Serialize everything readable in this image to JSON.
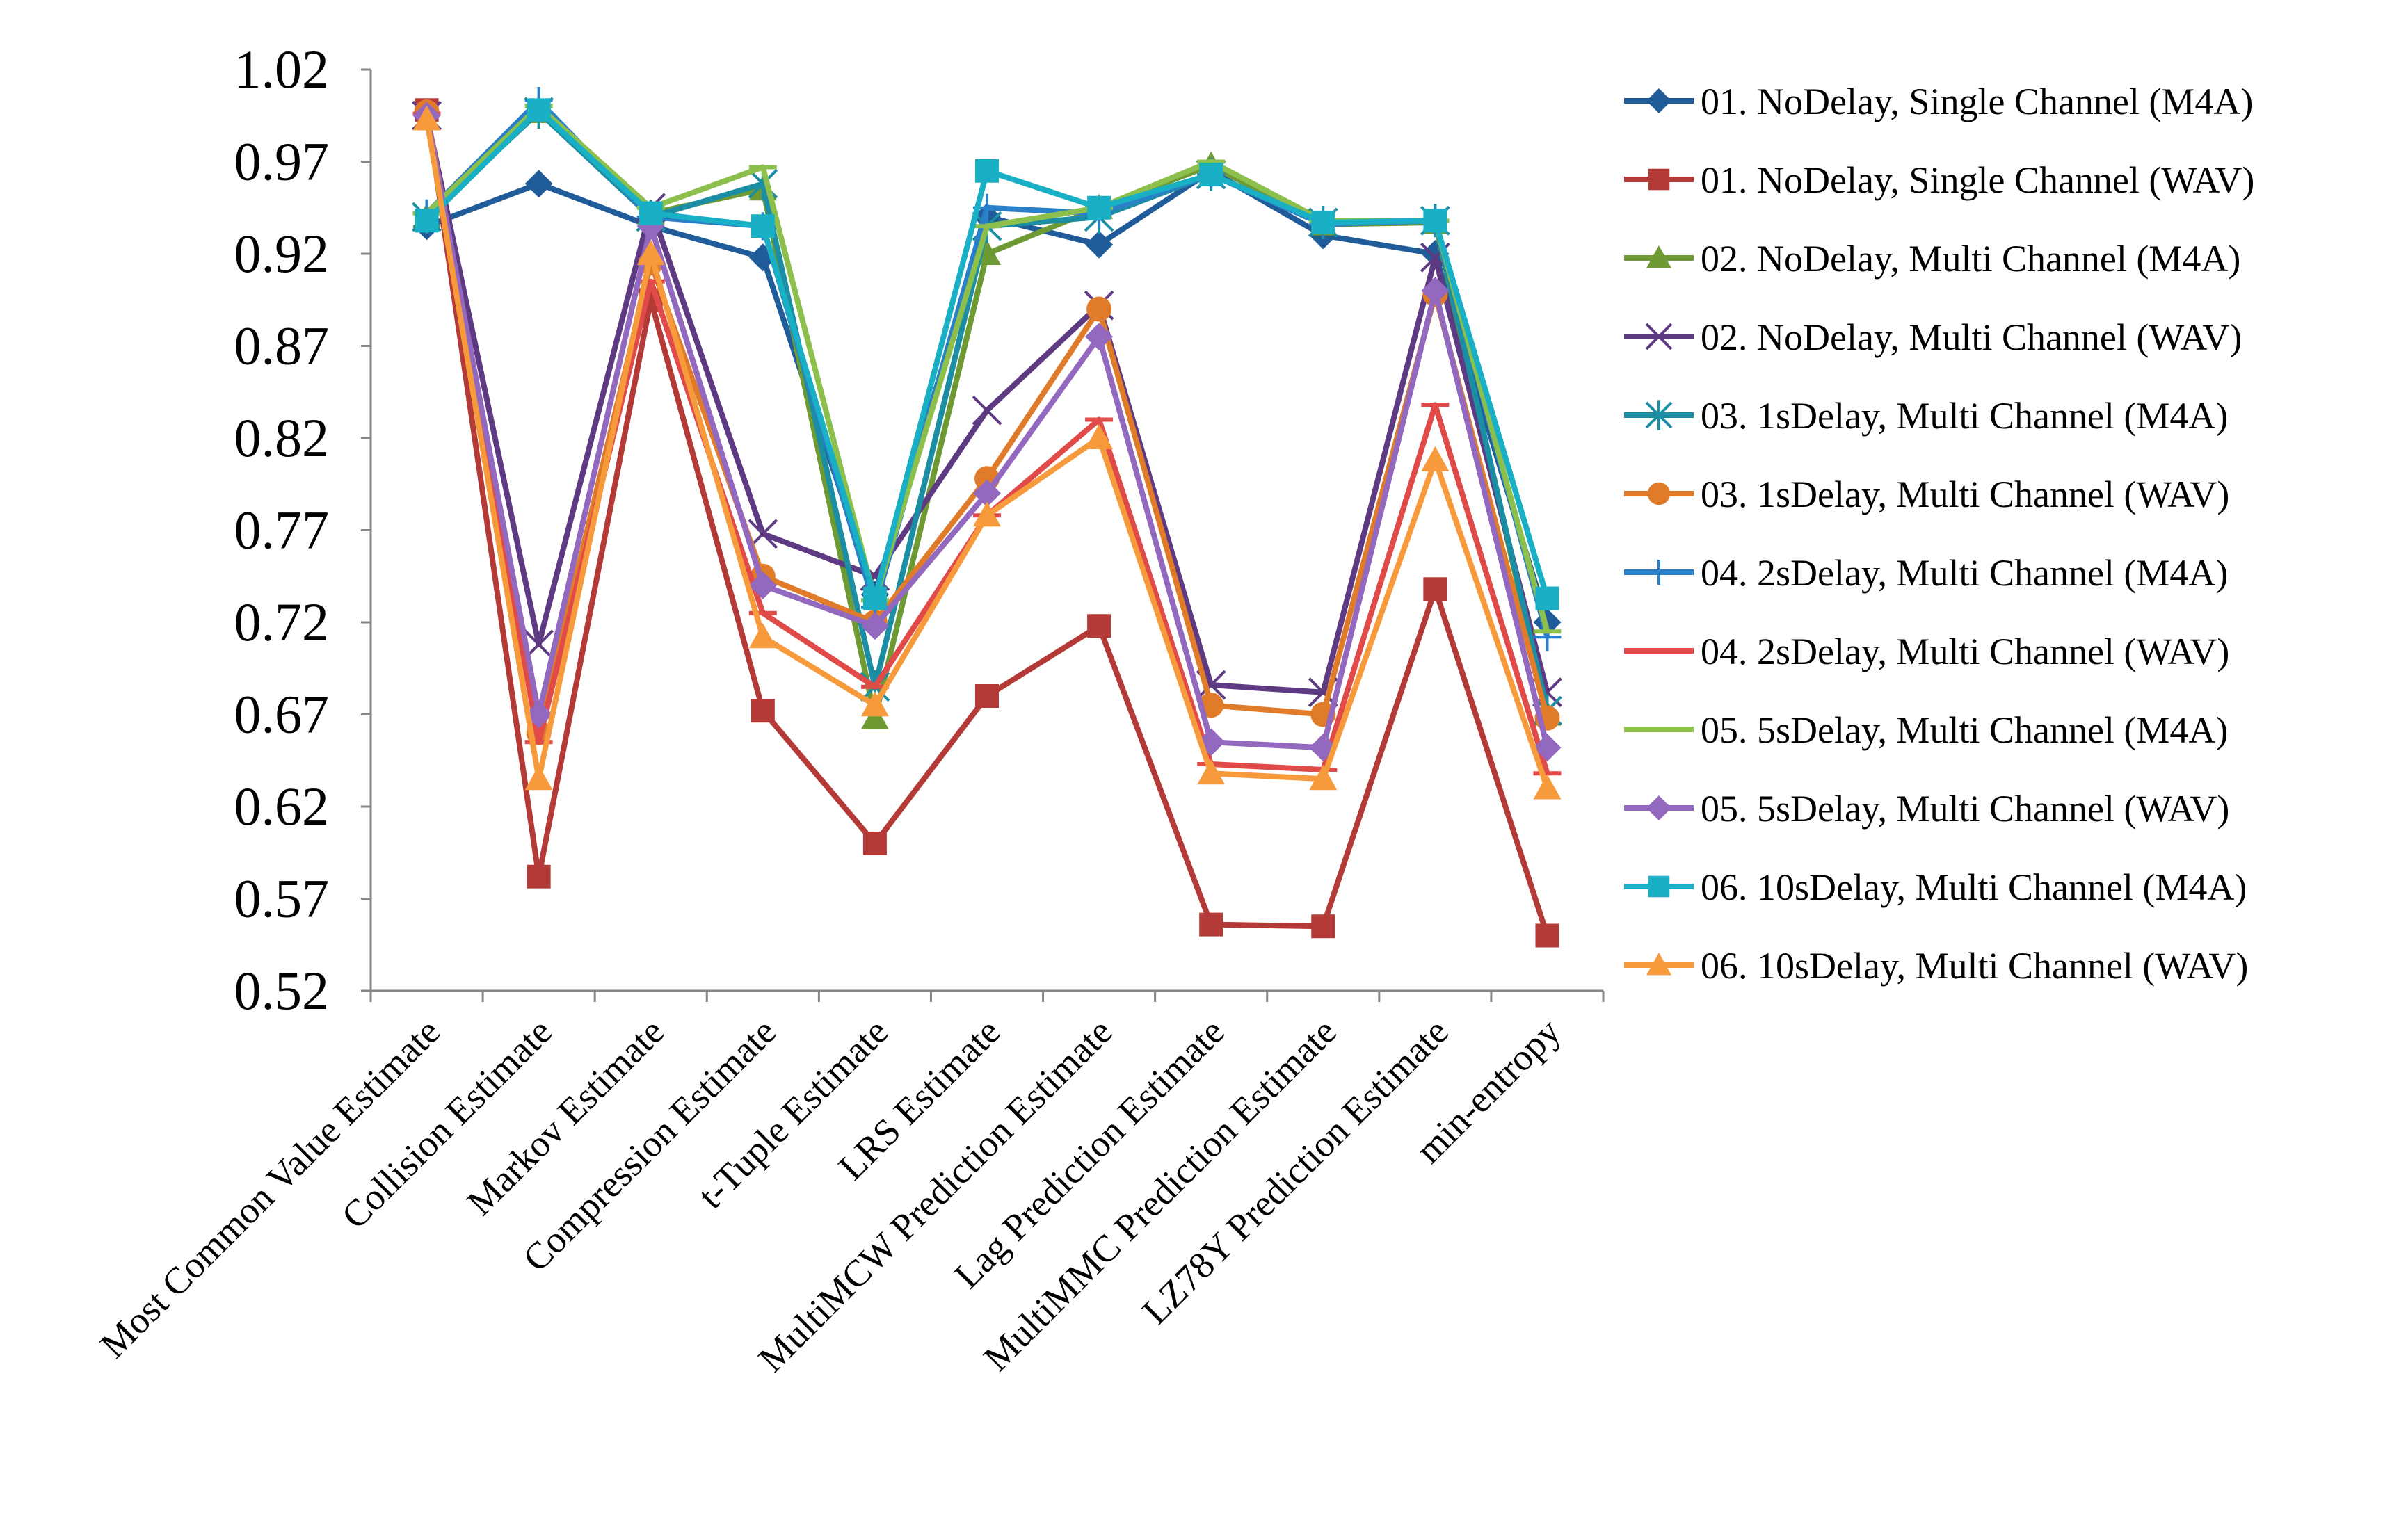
{
  "chart_data": {
    "type": "line",
    "title": "",
    "xlabel": "",
    "ylabel": "",
    "ylim": [
      0.52,
      1.02
    ],
    "yticks": [
      "1.02",
      "0.97",
      "0.92",
      "0.87",
      "0.82",
      "0.77",
      "0.72",
      "0.67",
      "0.62",
      "0.57",
      "0.52"
    ],
    "grid": false,
    "legend_position": "right",
    "categories": [
      "Most Common Value Estimate",
      "Collision Estimate",
      "Markov Estimate",
      "Compression Estimate",
      "t-Tuple Estimate",
      "LRS Estimate",
      "MultiMCW Prediction Estimate",
      "Lag Prediction Estimate",
      "MultiMMC Prediction Estimate",
      "LZ78Y Prediction Estimate",
      "min-entropy"
    ],
    "series": [
      {
        "name": "01. NoDelay, Single Channel (M4A)",
        "color": "#1F5C99",
        "marker": "diamond",
        "values": [
          0.935,
          0.958,
          0.935,
          0.918,
          0.735,
          0.94,
          0.925,
          0.965,
          0.93,
          0.92,
          0.72
        ]
      },
      {
        "name": "01. NoDelay, Single Channel (WAV)",
        "color": "#B33A36",
        "marker": "square",
        "values": [
          0.998,
          0.582,
          0.895,
          0.672,
          0.6,
          0.68,
          0.718,
          0.556,
          0.555,
          0.738,
          0.55
        ]
      },
      {
        "name": "02. NoDelay, Multi Channel (M4A)",
        "color": "#6E9A34",
        "marker": "triangle",
        "values": [
          0.94,
          0.997,
          0.942,
          0.955,
          0.668,
          0.92,
          0.945,
          0.968,
          0.936,
          0.937,
          0.67
        ]
      },
      {
        "name": "02. NoDelay, Multi Channel (WAV)",
        "color": "#5E3A82",
        "marker": "x",
        "values": [
          0.995,
          0.708,
          0.945,
          0.768,
          0.745,
          0.835,
          0.892,
          0.686,
          0.682,
          0.918,
          0.682
        ]
      },
      {
        "name": "03. 1sDelay, Multi Channel (M4A)",
        "color": "#1C8EA3",
        "marker": "star",
        "values": [
          0.94,
          0.997,
          0.94,
          0.958,
          0.685,
          0.935,
          0.94,
          0.963,
          0.937,
          0.938,
          0.672
        ]
      },
      {
        "name": "03. 1sDelay, Multi Channel (WAV)",
        "color": "#E07B2A",
        "marker": "circle",
        "values": [
          0.997,
          0.66,
          0.915,
          0.745,
          0.72,
          0.798,
          0.89,
          0.675,
          0.67,
          0.898,
          0.668
        ]
      },
      {
        "name": "04. 2sDelay, Multi Channel (M4A)",
        "color": "#2A7FC9",
        "marker": "plus",
        "values": [
          0.942,
          1.003,
          0.94,
          0.935,
          0.728,
          0.945,
          0.942,
          0.963,
          0.936,
          0.938,
          0.712
        ]
      },
      {
        "name": "04. 2sDelay, Multi Channel (WAV)",
        "color": "#E04A48",
        "marker": "dash",
        "values": [
          0.996,
          0.655,
          0.905,
          0.725,
          0.685,
          0.778,
          0.83,
          0.643,
          0.64,
          0.838,
          0.638
        ]
      },
      {
        "name": "05. 5sDelay, Multi Channel (M4A)",
        "color": "#8CBF4C",
        "marker": "dash",
        "values": [
          0.942,
          1.0,
          0.945,
          0.967,
          0.732,
          0.935,
          0.945,
          0.97,
          0.938,
          0.938,
          0.715
        ]
      },
      {
        "name": "05. 5sDelay, Multi Channel (WAV)",
        "color": "#9368BF",
        "marker": "diamond",
        "values": [
          0.995,
          0.67,
          0.935,
          0.74,
          0.718,
          0.79,
          0.875,
          0.655,
          0.652,
          0.9,
          0.652
        ]
      },
      {
        "name": "06. 10sDelay, Multi Channel (M4A)",
        "color": "#19AFC4",
        "marker": "square",
        "values": [
          0.938,
          0.998,
          0.942,
          0.935,
          0.733,
          0.965,
          0.945,
          0.963,
          0.937,
          0.938,
          0.733
        ]
      },
      {
        "name": "06. 10sDelay, Multi Channel (WAV)",
        "color": "#F79A3C",
        "marker": "triangle",
        "values": [
          0.993,
          0.635,
          0.92,
          0.712,
          0.675,
          0.778,
          0.82,
          0.638,
          0.635,
          0.808,
          0.63
        ]
      }
    ]
  }
}
